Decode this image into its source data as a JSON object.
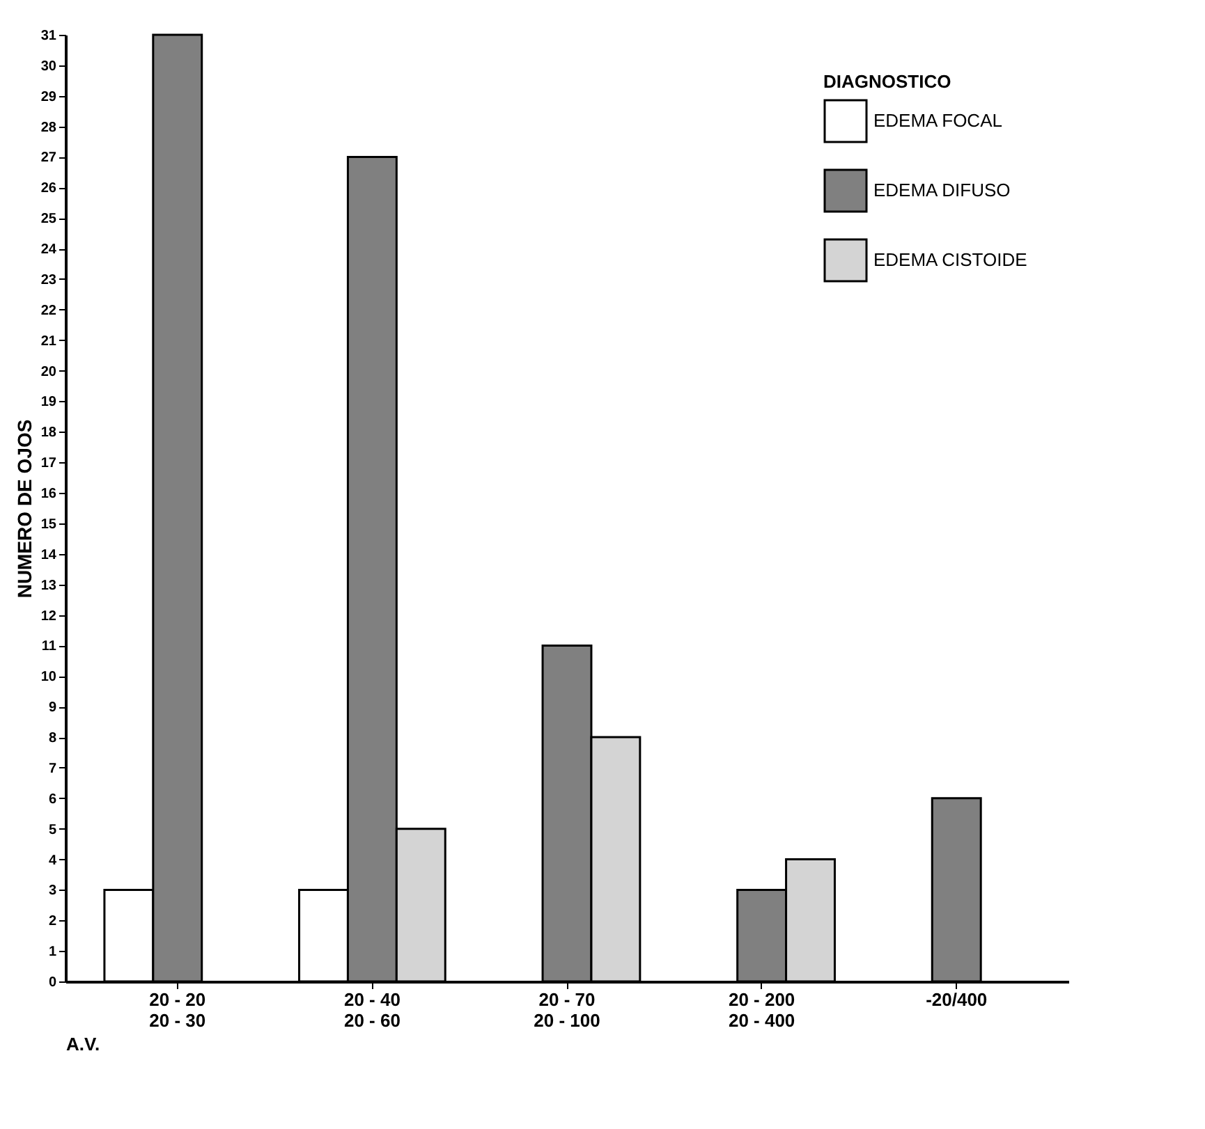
{
  "chart_data": {
    "type": "bar",
    "xlabel": "A.V.",
    "ylabel": "NUMERO DE OJOS",
    "legend_title": "DIAGNOSTICO",
    "legend": "top right",
    "grid": false,
    "categories": [
      "20 - 20\n20 - 30",
      "20 - 40\n20 - 60",
      "20 - 70\n20 - 100",
      "20 - 200\n20 - 400",
      "-20/400"
    ],
    "ylim": [
      0,
      31
    ],
    "yticks": [
      0,
      1,
      2,
      3,
      4,
      5,
      6,
      7,
      8,
      9,
      10,
      11,
      12,
      13,
      14,
      15,
      16,
      17,
      18,
      19,
      20,
      21,
      22,
      23,
      24,
      25,
      26,
      27,
      28,
      29,
      30,
      31
    ],
    "series": [
      {
        "name": "EDEMA FOCAL",
        "color": "#ffffff",
        "values": [
          3,
          3,
          null,
          null,
          null
        ]
      },
      {
        "name": "EDEMA DIFUSO",
        "color": "#808080",
        "values": [
          31,
          27,
          11,
          3,
          6
        ]
      },
      {
        "name": "EDEMA CISTOIDE",
        "color": "#d4d4d4",
        "values": [
          null,
          5,
          8,
          4,
          null
        ]
      }
    ]
  }
}
